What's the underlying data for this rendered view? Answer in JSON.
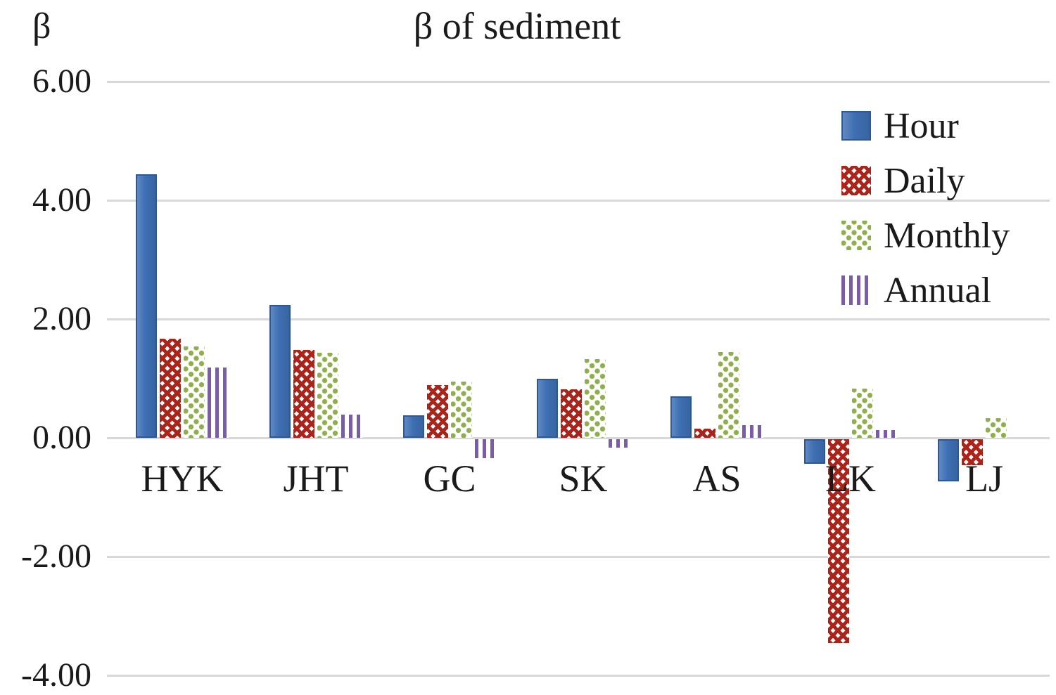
{
  "page": {
    "background": "#ffffff",
    "text_color": "#1a1a1a",
    "gridline_color": "#d8d8d8"
  },
  "chart_data": {
    "type": "bar",
    "title": "β of sediment",
    "y_axis_label": "β",
    "categories": [
      "HYK",
      "JHT",
      "GC",
      "SK",
      "AS",
      "LK",
      "LJ"
    ],
    "series": [
      {
        "name": "Hour",
        "pattern": "solid",
        "color": "#3E6FB3",
        "values": [
          4.44,
          2.24,
          0.38,
          0.99,
          0.7,
          -0.41,
          -0.71
        ]
      },
      {
        "name": "Daily",
        "pattern": "cross",
        "color": "#AC2319",
        "values": [
          1.67,
          1.48,
          0.89,
          0.82,
          0.15,
          -3.43,
          -0.44
        ]
      },
      {
        "name": "Monthly",
        "pattern": "dots",
        "color": "#8FAF4C",
        "values": [
          1.54,
          1.43,
          0.95,
          1.33,
          1.44,
          0.83,
          0.33
        ]
      },
      {
        "name": "Annual",
        "pattern": "vlines",
        "color": "#7A5CA8",
        "values": [
          1.18,
          0.39,
          -0.32,
          -0.14,
          0.21,
          0.13,
          0
        ]
      }
    ],
    "yticks": [
      6,
      4,
      2,
      0,
      -2,
      -4
    ],
    "ytick_labels": [
      "6.00",
      "4.00",
      "2.00",
      "0.00",
      "-2.00",
      "-4.00"
    ],
    "ylim": [
      -4,
      6
    ],
    "grid": true,
    "legend_position": "top-right"
  }
}
